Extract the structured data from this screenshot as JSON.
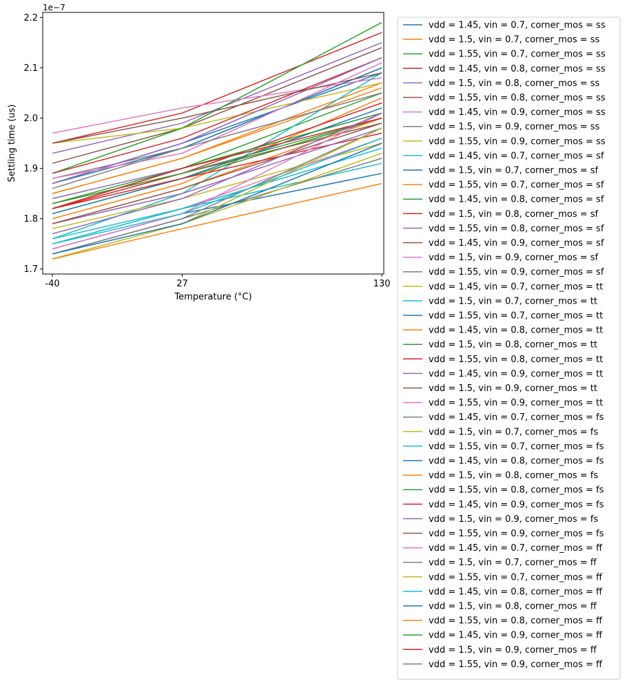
{
  "chart_data": {
    "type": "line",
    "x": [
      -40,
      27,
      130
    ],
    "x_tick_labels": [
      "-40",
      "27",
      "130"
    ],
    "xlabel": "Temperature (°C)",
    "ylabel": "Settling time (us)",
    "y_offset_label": "1e−7",
    "y_ticks": [
      1.7,
      1.8,
      1.9,
      2.0,
      2.1,
      2.2
    ],
    "y_tick_labels": [
      "1.7",
      "1.8",
      "1.9",
      "2.0",
      "2.1",
      "2.2"
    ],
    "y_scale": 1e-07,
    "ylim": [
      1.69e-07,
      2.21e-07
    ],
    "xlim": [
      -45,
      131
    ],
    "grid": false,
    "legend_position": "outside-right",
    "colors": [
      "#1f77b4",
      "#ff7f0e",
      "#2ca02c",
      "#d62728",
      "#9467bd",
      "#8c564b",
      "#e377c2",
      "#7f7f7f",
      "#bcbd22",
      "#17becf"
    ],
    "series": [
      {
        "name": "vdd = 1.45, vin = 0.7, corner_mos = ss",
        "values": [
          1.87e-07,
          1.95e-07,
          2.09e-07
        ]
      },
      {
        "name": "vdd = 1.5, vin = 0.7, corner_mos = ss",
        "values": [
          1.85e-07,
          1.92e-07,
          2.07e-07
        ]
      },
      {
        "name": "vdd = 1.55, vin = 0.7, corner_mos = ss",
        "values": [
          1.83e-07,
          1.9e-07,
          2.05e-07
        ]
      },
      {
        "name": "vdd = 1.45, vin = 0.8, corner_mos = ss",
        "values": [
          1.95e-07,
          2.01e-07,
          2.17e-07
        ]
      },
      {
        "name": "vdd = 1.5, vin = 0.8, corner_mos = ss",
        "values": [
          1.93e-07,
          1.99e-07,
          2.15e-07
        ]
      },
      {
        "name": "vdd = 1.55, vin = 0.8, corner_mos = ss",
        "values": [
          1.91e-07,
          1.98e-07,
          2.14e-07
        ]
      },
      {
        "name": "vdd = 1.45, vin = 0.9, corner_mos = ss",
        "values": [
          1.97e-07,
          2.02e-07,
          2.08e-07
        ]
      },
      {
        "name": "vdd = 1.5, vin = 0.9, corner_mos = ss",
        "values": [
          1.88e-07,
          1.94e-07,
          2.1e-07
        ]
      },
      {
        "name": "vdd = 1.55, vin = 0.9, corner_mos = ss",
        "values": [
          1.95e-07,
          1.98e-07,
          2.07e-07
        ]
      },
      {
        "name": "vdd = 1.45, vin = 0.7, corner_mos = sf",
        "values": [
          1.76e-07,
          1.85e-07,
          2.09e-07
        ]
      },
      {
        "name": "vdd = 1.5, vin = 0.7, corner_mos = sf",
        "values": [
          1.87e-07,
          1.94e-07,
          2.1e-07
        ]
      },
      {
        "name": "vdd = 1.55, vin = 0.7, corner_mos = sf",
        "values": [
          1.85e-07,
          1.92e-07,
          2.06e-07
        ]
      },
      {
        "name": "vdd = 1.45, vin = 0.8, corner_mos = sf",
        "values": [
          1.89e-07,
          1.98e-07,
          2.19e-07
        ]
      },
      {
        "name": "vdd = 1.5, vin = 0.8, corner_mos = sf",
        "values": [
          1.89e-07,
          1.96e-07,
          2.12e-07
        ]
      },
      {
        "name": "vdd = 1.55, vin = 0.8, corner_mos = sf",
        "values": [
          1.87e-07,
          1.95e-07,
          2.12e-07
        ]
      },
      {
        "name": "vdd = 1.45, vin = 0.9, corner_mos = sf",
        "values": [
          1.95e-07,
          2e-07,
          2.09e-07
        ]
      },
      {
        "name": "vdd = 1.5, vin = 0.9, corner_mos = sf",
        "values": [
          1.88e-07,
          1.93e-07,
          2.11e-07
        ]
      },
      {
        "name": "vdd = 1.55, vin = 0.9, corner_mos = sf",
        "values": [
          1.86e-07,
          1.94e-07,
          2.05e-07
        ]
      },
      {
        "name": "vdd = 1.45, vin = 0.7, corner_mos = tt",
        "values": [
          1.78e-07,
          1.84e-07,
          1.95e-07
        ]
      },
      {
        "name": "vdd = 1.5, vin = 0.7, corner_mos = tt",
        "values": [
          1.76e-07,
          1.82e-07,
          1.91e-07
        ]
      },
      {
        "name": "vdd = 1.55, vin = 0.7, corner_mos = tt",
        "values": [
          1.74e-07,
          1.81e-07,
          1.89e-07
        ]
      },
      {
        "name": "vdd = 1.45, vin = 0.8, corner_mos = tt",
        "values": [
          1.8e-07,
          1.87e-07,
          2.04e-07
        ]
      },
      {
        "name": "vdd = 1.5, vin = 0.8, corner_mos = tt",
        "values": [
          1.81e-07,
          1.88e-07,
          2e-07
        ]
      },
      {
        "name": "vdd = 1.55, vin = 0.8, corner_mos = tt",
        "values": [
          1.82e-07,
          1.89e-07,
          2.03e-07
        ]
      },
      {
        "name": "vdd = 1.45, vin = 0.9, corner_mos = tt",
        "values": [
          1.84e-07,
          1.9e-07,
          2.01e-07
        ]
      },
      {
        "name": "vdd = 1.5, vin = 0.9, corner_mos = tt",
        "values": [
          1.83e-07,
          1.89e-07,
          1.99e-07
        ]
      },
      {
        "name": "vdd = 1.55, vin = 0.9, corner_mos = tt",
        "values": [
          1.75e-07,
          1.82e-07,
          1.96e-07
        ]
      },
      {
        "name": "vdd = 1.45, vin = 0.7, corner_mos = fs",
        "values": [
          1.73e-07,
          1.8e-07,
          1.92e-07
        ]
      },
      {
        "name": "vdd = 1.5, vin = 0.7, corner_mos = fs",
        "values": [
          1.72e-07,
          1.79e-07,
          1.93e-07
        ]
      },
      {
        "name": "vdd = 1.55, vin = 0.7, corner_mos = fs",
        "values": [
          1.75e-07,
          1.82e-07,
          1.94e-07
        ]
      },
      {
        "name": "vdd = 1.45, vin = 0.8, corner_mos = fs",
        "values": [
          1.81e-07,
          1.88e-07,
          2.02e-07
        ]
      },
      {
        "name": "vdd = 1.5, vin = 0.8, corner_mos = fs",
        "values": [
          1.79e-07,
          1.86e-07,
          2e-07
        ]
      },
      {
        "name": "vdd = 1.55, vin = 0.8, corner_mos = fs",
        "values": [
          1.82e-07,
          1.9e-07,
          2.01e-07
        ]
      },
      {
        "name": "vdd = 1.45, vin = 0.9, corner_mos = fs",
        "values": [
          1.82e-07,
          1.88e-07,
          1.97e-07
        ]
      },
      {
        "name": "vdd = 1.5, vin = 0.9, corner_mos = fs",
        "values": [
          1.79e-07,
          1.85e-07,
          1.98e-07
        ]
      },
      {
        "name": "vdd = 1.55, vin = 0.9, corner_mos = fs",
        "values": [
          1.79e-07,
          1.86e-07,
          1.99e-07
        ]
      },
      {
        "name": "vdd = 1.45, vin = 0.7, corner_mos = ff",
        "values": [
          1.74e-07,
          1.81e-07,
          2.01e-07
        ]
      },
      {
        "name": "vdd = 1.5, vin = 0.7, corner_mos = ff",
        "values": [
          1.73e-07,
          1.8e-07,
          1.98e-07
        ]
      },
      {
        "name": "vdd = 1.55, vin = 0.7, corner_mos = ff",
        "values": [
          1.72e-07,
          1.79e-07,
          1.98e-07
        ]
      },
      {
        "name": "vdd = 1.45, vin = 0.8, corner_mos = ff",
        "values": [
          1.75e-07,
          1.81e-07,
          1.96e-07
        ]
      },
      {
        "name": "vdd = 1.5, vin = 0.8, corner_mos = ff",
        "values": [
          1.73e-07,
          1.79e-07,
          1.95e-07
        ]
      },
      {
        "name": "vdd = 1.55, vin = 0.8, corner_mos = ff",
        "values": [
          1.72e-07,
          1.78e-07,
          1.87e-07
        ]
      },
      {
        "name": "vdd = 1.45, vin = 0.9, corner_mos = ff",
        "values": [
          1.83e-07,
          1.89e-07,
          2e-07
        ]
      },
      {
        "name": "vdd = 1.5, vin = 0.9, corner_mos = ff",
        "values": [
          1.82e-07,
          1.9e-07,
          2e-07
        ]
      },
      {
        "name": "vdd = 1.55, vin = 0.9, corner_mos = ff",
        "values": [
          1.77e-07,
          1.84e-07,
          2.01e-07
        ]
      }
    ]
  }
}
